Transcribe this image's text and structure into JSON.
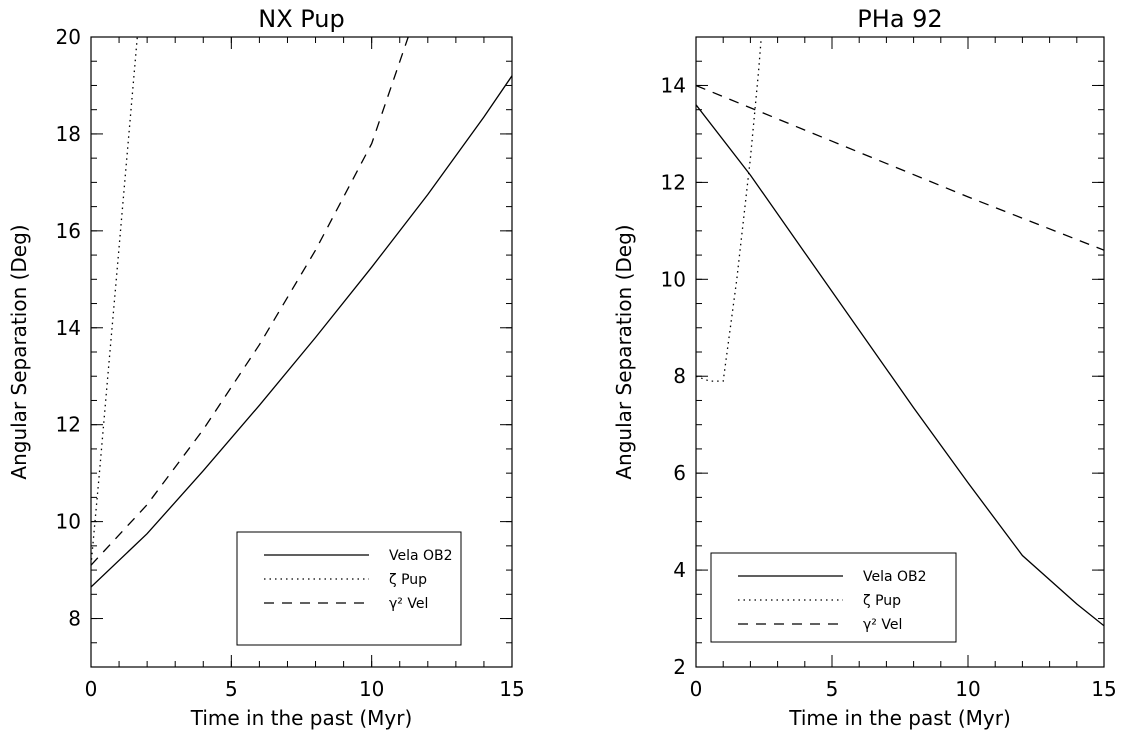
{
  "chart_data": [
    {
      "type": "line",
      "title": "NX Pup",
      "xlabel": "Time in the past (Myr)",
      "ylabel": "Angular Separation (Deg)",
      "xlim": [
        0,
        15
      ],
      "ylim": [
        7,
        20
      ],
      "xticks": [
        0,
        5,
        10,
        15
      ],
      "yticks": [
        8,
        10,
        12,
        14,
        16,
        18,
        20
      ],
      "x_minor_step": 1,
      "y_minor_step": 0.5,
      "legend_position": "bottom-right",
      "series": [
        {
          "name": "Vela OB2",
          "style": "solid",
          "x": [
            0,
            2,
            4,
            6,
            8,
            10,
            12,
            14,
            15
          ],
          "y": [
            8.65,
            9.75,
            11.05,
            12.4,
            13.8,
            15.25,
            16.75,
            18.35,
            19.2
          ]
        },
        {
          "name": "ζ Pup",
          "style": "dotted",
          "x": [
            0,
            0.3,
            0.6,
            0.9,
            1.2,
            1.5,
            1.65
          ],
          "y": [
            9.1,
            11.0,
            13.0,
            15.0,
            17.0,
            19.0,
            20.0
          ]
        },
        {
          "name": "γ² Vel",
          "style": "dashed",
          "x": [
            0,
            2,
            4,
            6,
            8,
            10,
            11.3
          ],
          "y": [
            9.1,
            10.35,
            11.9,
            13.65,
            15.6,
            17.8,
            20.0
          ]
        }
      ]
    },
    {
      "type": "line",
      "title": "PHa 92",
      "xlabel": "Time in the past (Myr)",
      "ylabel": "Angular Separation (Deg)",
      "xlim": [
        0,
        15
      ],
      "ylim": [
        2,
        15
      ],
      "xticks": [
        0,
        5,
        10,
        15
      ],
      "yticks": [
        2,
        4,
        6,
        8,
        10,
        12,
        14
      ],
      "x_minor_step": 1,
      "y_minor_step": 0.5,
      "legend_position": "bottom-left",
      "series": [
        {
          "name": "Vela OB2",
          "style": "solid",
          "x": [
            0,
            2,
            4,
            6,
            8,
            10,
            12,
            14,
            15
          ],
          "y": [
            13.6,
            12.15,
            10.55,
            8.95,
            7.35,
            5.8,
            4.3,
            3.3,
            2.85
          ]
        },
        {
          "name": "ζ Pup",
          "style": "dotted",
          "x": [
            0,
            0.5,
            1.0,
            1.5,
            2.0,
            2.3,
            2.4
          ],
          "y": [
            8.0,
            7.9,
            7.9,
            10.0,
            12.5,
            14.3,
            15.0
          ]
        },
        {
          "name": "γ² Vel",
          "style": "dashed",
          "x": [
            0,
            5,
            10,
            15
          ],
          "y": [
            14.0,
            12.85,
            11.7,
            10.6
          ]
        }
      ]
    }
  ]
}
